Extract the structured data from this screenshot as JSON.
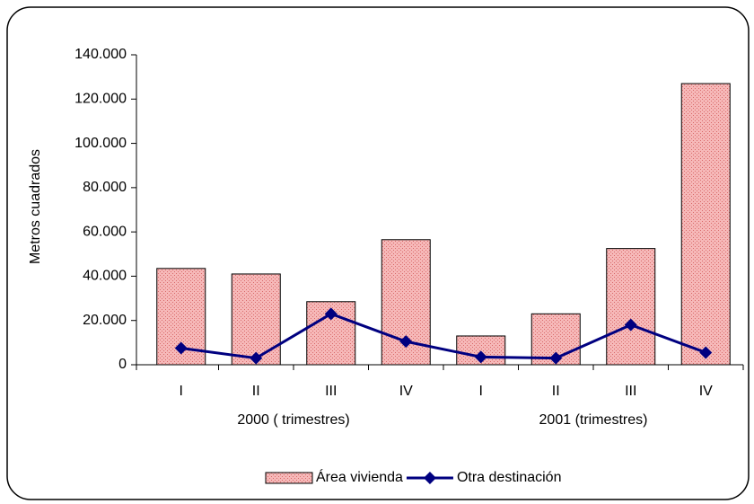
{
  "chart_data": {
    "type": "bar-line",
    "y_label": "Metros cuadrados",
    "categories": [
      "I",
      "II",
      "III",
      "IV",
      "I",
      "II",
      "III",
      "IV"
    ],
    "category_groups": [
      "2000 ( trimestres)",
      "2001 (trimestres)"
    ],
    "ylim": [
      0,
      140000
    ],
    "yticks": [
      0,
      {
        "value": 20000,
        "label": "20.000"
      },
      {
        "value": 40000,
        "label": "40.000"
      },
      {
        "value": 60000,
        "label": "60.000"
      },
      {
        "value": 80000,
        "label": "80.000"
      },
      {
        "value": 100000,
        "label": "100.000"
      },
      {
        "value": 120000,
        "label": "120.000"
      },
      {
        "value": 140000,
        "label": "140.000"
      }
    ],
    "series": [
      {
        "name": "Área vivienda",
        "type": "bar",
        "color": "#f2a0a0",
        "values": [
          43500,
          41000,
          28500,
          56500,
          13000,
          23000,
          52500,
          127000
        ]
      },
      {
        "name": "Otra destinación",
        "type": "line",
        "color": "#000080",
        "values": [
          7500,
          3000,
          23000,
          10500,
          3500,
          3000,
          18000,
          5500
        ]
      }
    ],
    "legend": "bottom"
  }
}
